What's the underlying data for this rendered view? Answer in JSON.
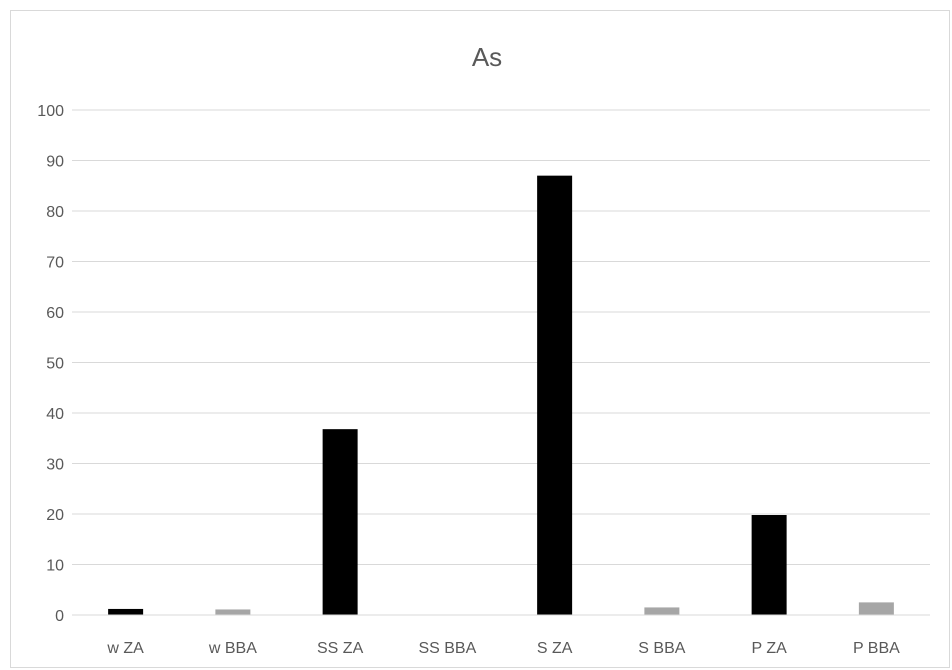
{
  "chart_data": {
    "type": "bar",
    "title": "As",
    "xlabel": "",
    "ylabel": "",
    "ylim": [
      0,
      100
    ],
    "yticks": [
      0,
      10,
      20,
      30,
      40,
      50,
      60,
      70,
      80,
      90,
      100
    ],
    "grid": true,
    "legend": "none",
    "categories": [
      "w ZA",
      "w BBA",
      "SS ZA",
      "SS BBA",
      "S ZA",
      "S BBA",
      "P ZA",
      "P BBA"
    ],
    "values": [
      1.2,
      1.1,
      36.8,
      0,
      87.0,
      1.5,
      19.8,
      2.5
    ],
    "colors": [
      "#000000",
      "#a6a6a6",
      "#000000",
      "#a6a6a6",
      "#000000",
      "#a6a6a6",
      "#000000",
      "#a6a6a6"
    ]
  }
}
